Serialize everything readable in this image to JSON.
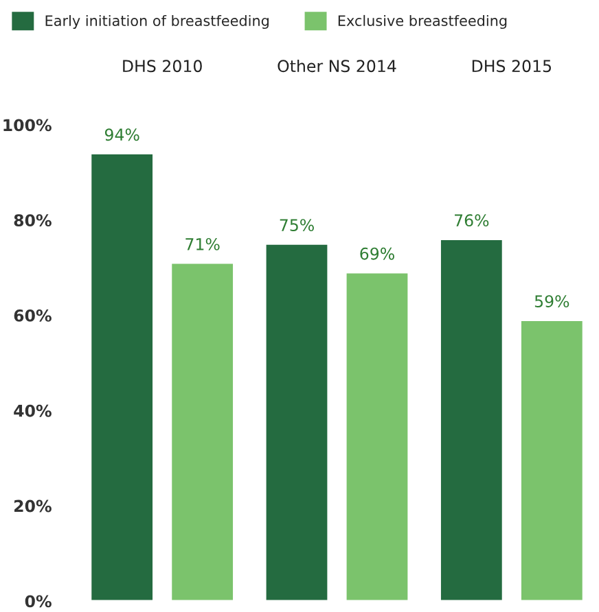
{
  "chart_data": {
    "type": "bar",
    "categories": [
      "DHS 2010",
      "Other NS 2014",
      "DHS 2015"
    ],
    "series": [
      {
        "name": "Early initiation of breastfeeding",
        "color": "#246b40",
        "values": [
          94,
          75,
          76
        ],
        "value_labels": [
          "94%",
          "75%",
          "76%"
        ]
      },
      {
        "name": "Exclusive breastfeeding",
        "color": "#7bc36c",
        "values": [
          71,
          69,
          59
        ],
        "value_labels": [
          "71%",
          "69%",
          "59%"
        ]
      }
    ],
    "ylim": [
      0,
      100
    ],
    "yticks": [
      {
        "value": 0,
        "label": "0%"
      },
      {
        "value": 20,
        "label": "20%"
      },
      {
        "value": 40,
        "label": "40%"
      },
      {
        "value": 60,
        "label": "60%"
      },
      {
        "value": 80,
        "label": "80%"
      },
      {
        "value": 100,
        "label": "100%"
      }
    ],
    "grid": false,
    "legend": "top left"
  }
}
